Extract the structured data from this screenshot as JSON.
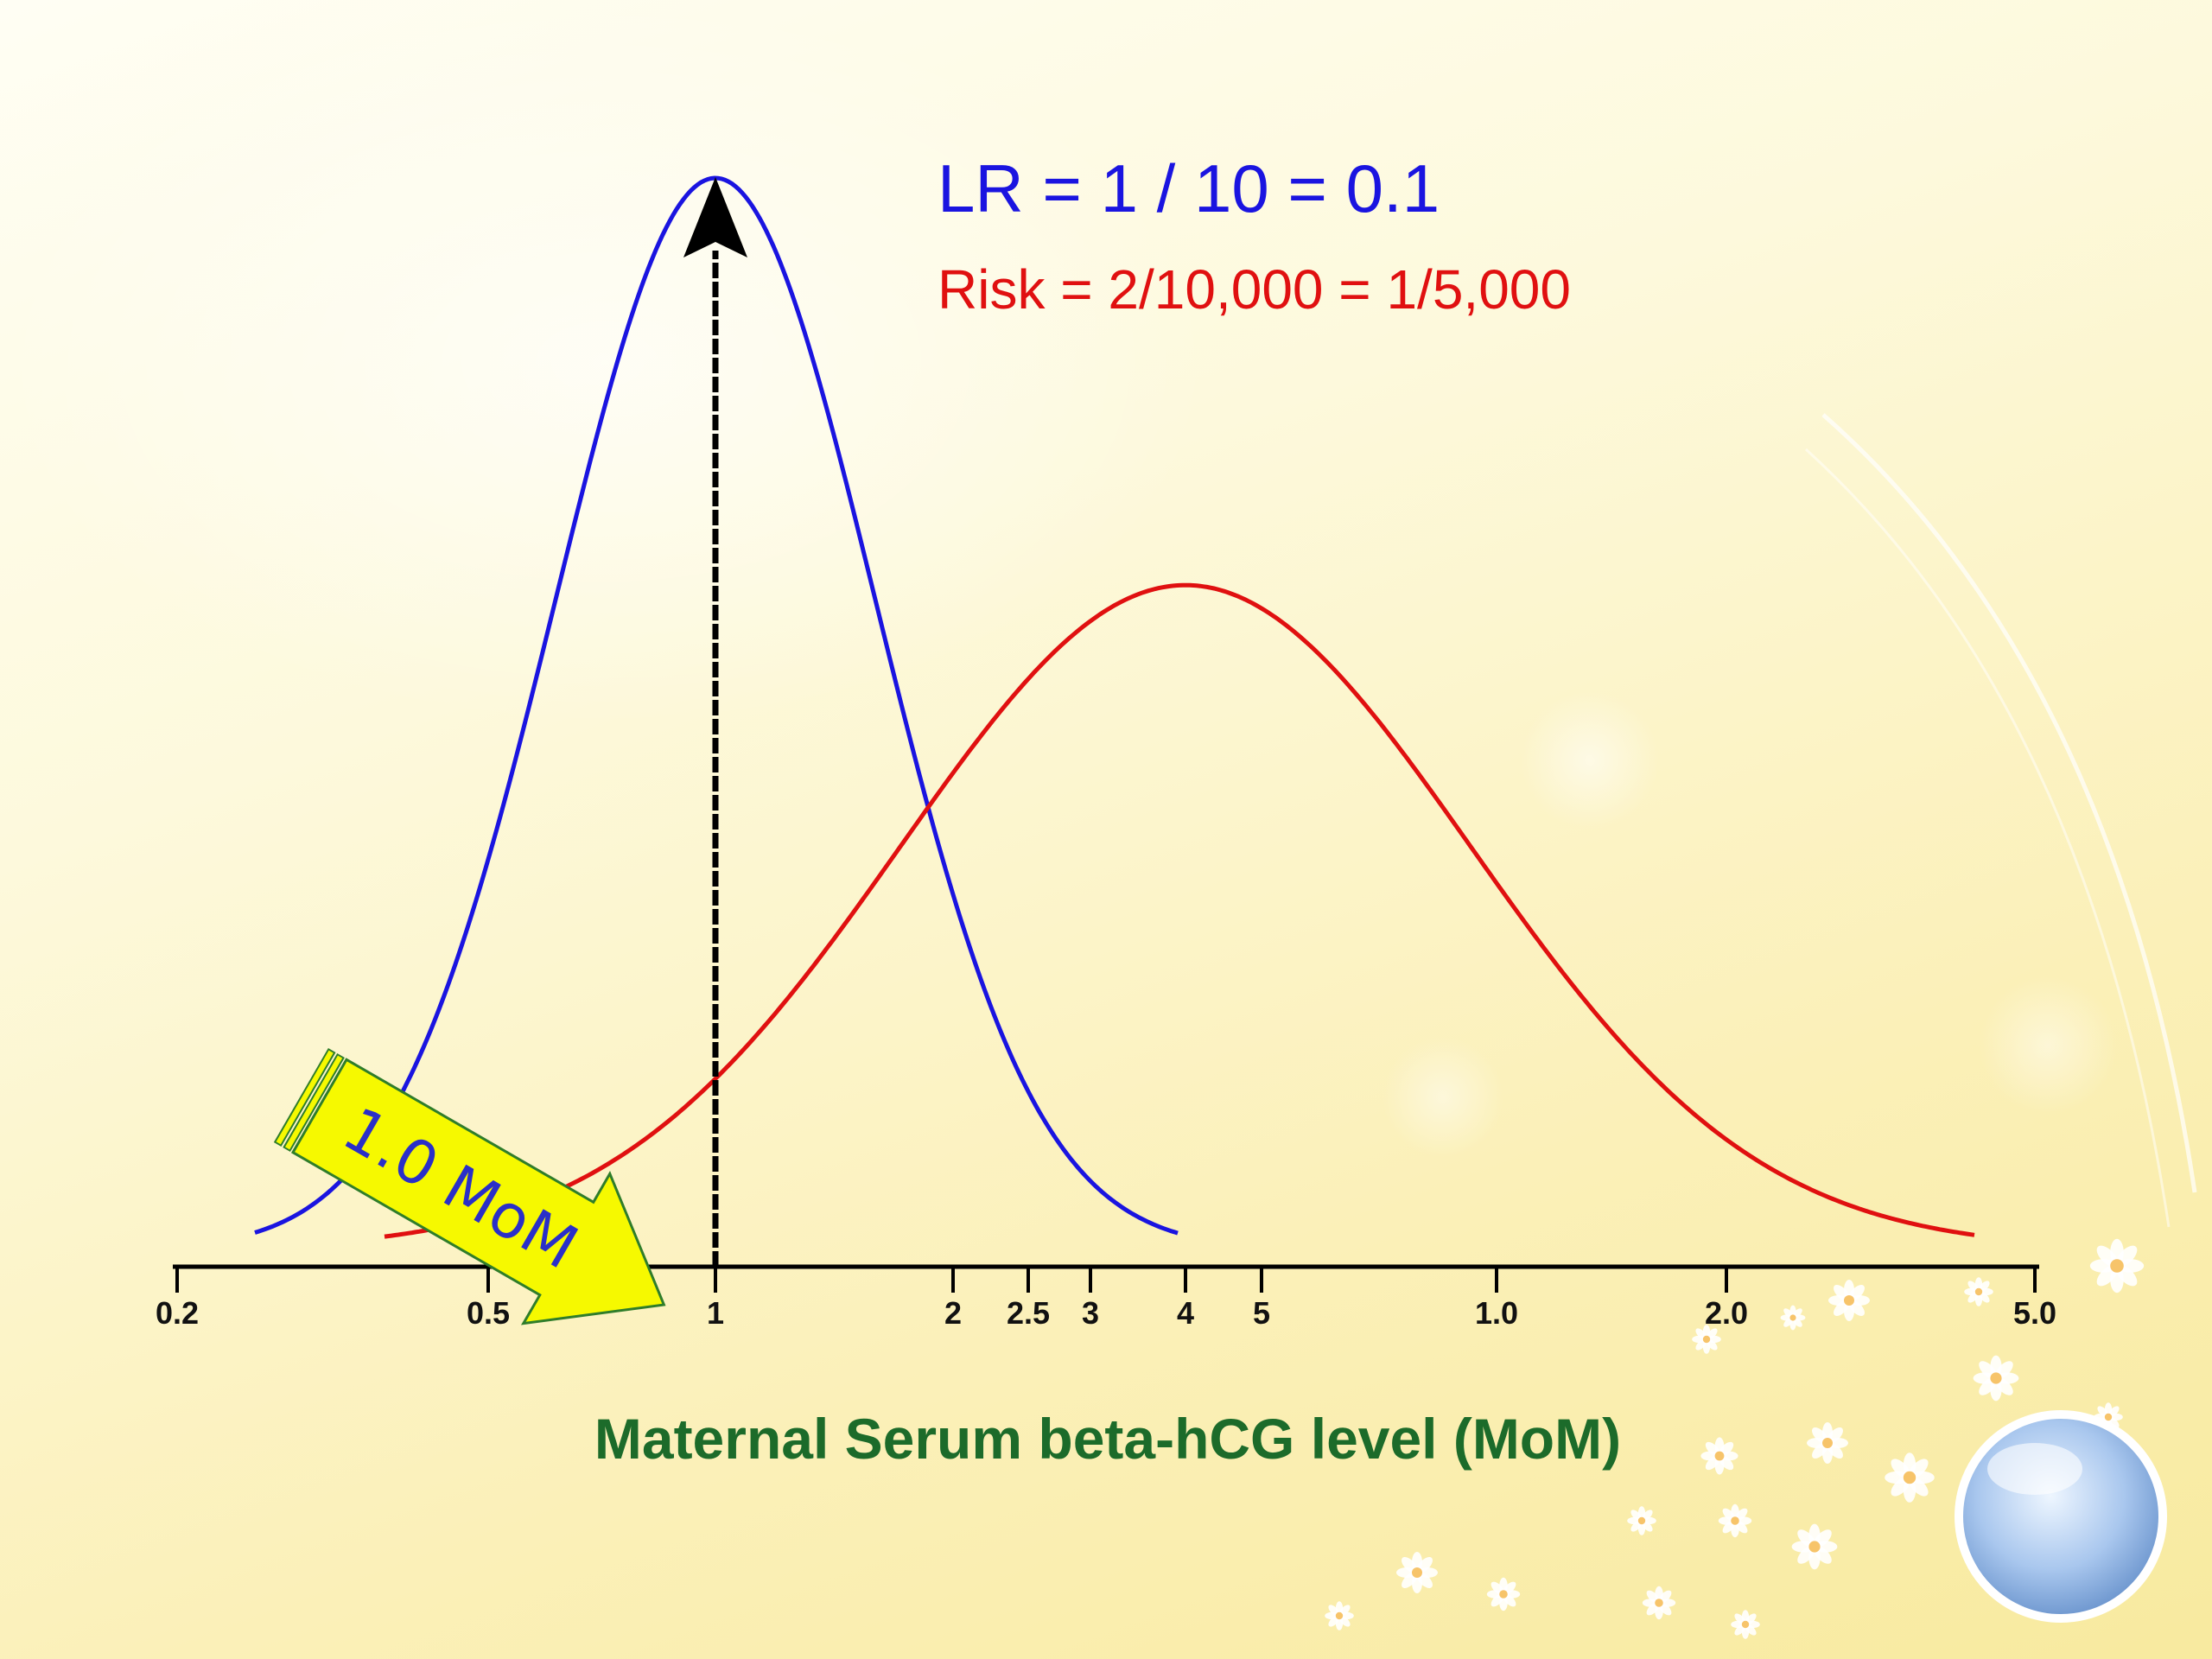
{
  "colors": {
    "normal_curve": "#1a14e0",
    "affected_curve": "#e01010",
    "xlabel": "#1c6b2a",
    "arrow_fill": "#f6f900",
    "arrow_stroke": "#2f7d2a",
    "arrow_text": "#2a2fc8",
    "axis": "#000000"
  },
  "annotations": {
    "lr": "LR = 1 / 10 = 0.1",
    "risk": "Risk = 2/10,000 = 1/5,000",
    "marker": "1.0 MoM"
  },
  "chart_data": {
    "type": "line",
    "xlabel": "Maternal Serum beta-hCG level (MoM)",
    "ylabel": "",
    "ticks": [
      "0.2",
      "0.5",
      "1",
      "2",
      "2.5",
      "3",
      "4",
      "5",
      "1.0",
      "2.0",
      "5.0"
    ],
    "x_scale": "log",
    "series": [
      {
        "type": "gaussian",
        "mean": "1",
        "rel_height": 1.0,
        "color_key": "normal_curve"
      },
      {
        "type": "gaussian",
        "mean": "4",
        "rel_height": 0.62,
        "color_key": "affected_curve"
      }
    ],
    "marker_value": "1",
    "grid": false,
    "legend": "none"
  }
}
